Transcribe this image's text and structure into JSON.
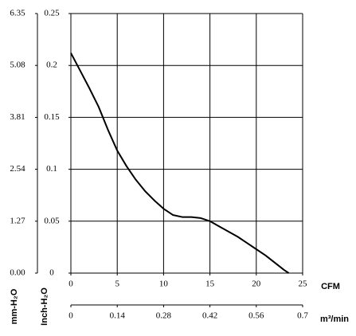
{
  "chart_data": {
    "type": "line",
    "x_label": "CFM",
    "x2_label": "m³/min",
    "y_label": "Inch-H₂O",
    "y2_label": "mm-H₂O",
    "x": [
      0,
      1,
      2,
      3,
      4,
      5,
      6,
      7,
      8,
      9,
      10,
      11,
      12,
      13,
      14,
      15,
      16,
      17,
      18,
      19,
      20,
      21,
      22,
      23,
      23.5
    ],
    "series": [
      {
        "color": "#000000",
        "values": [
          0.212,
          0.195,
          0.178,
          0.16,
          0.138,
          0.118,
          0.103,
          0.09,
          0.079,
          0.07,
          0.062,
          0.056,
          0.054,
          0.054,
          0.053,
          0.05,
          0.045,
          0.04,
          0.035,
          0.029,
          0.023,
          0.017,
          0.01,
          0.003,
          0
        ]
      }
    ],
    "xlim": [
      0,
      25
    ],
    "xticks": [
      0,
      5,
      10,
      15,
      20,
      25
    ],
    "ylim": [
      0,
      0.25
    ],
    "yticks": [
      0,
      0.05,
      0.1,
      0.15,
      0.2,
      0.25
    ],
    "y2lim": [
      0,
      6.35
    ],
    "y2ticks": [
      {
        "value": 0,
        "label": "0.00"
      },
      1.27,
      2.54,
      3.81,
      5.08,
      6.35
    ],
    "x2lim": [
      0,
      0.7
    ],
    "x2ticks": [
      0,
      0.14,
      0.28,
      0.42,
      0.56,
      0.7
    ],
    "grid": true
  }
}
